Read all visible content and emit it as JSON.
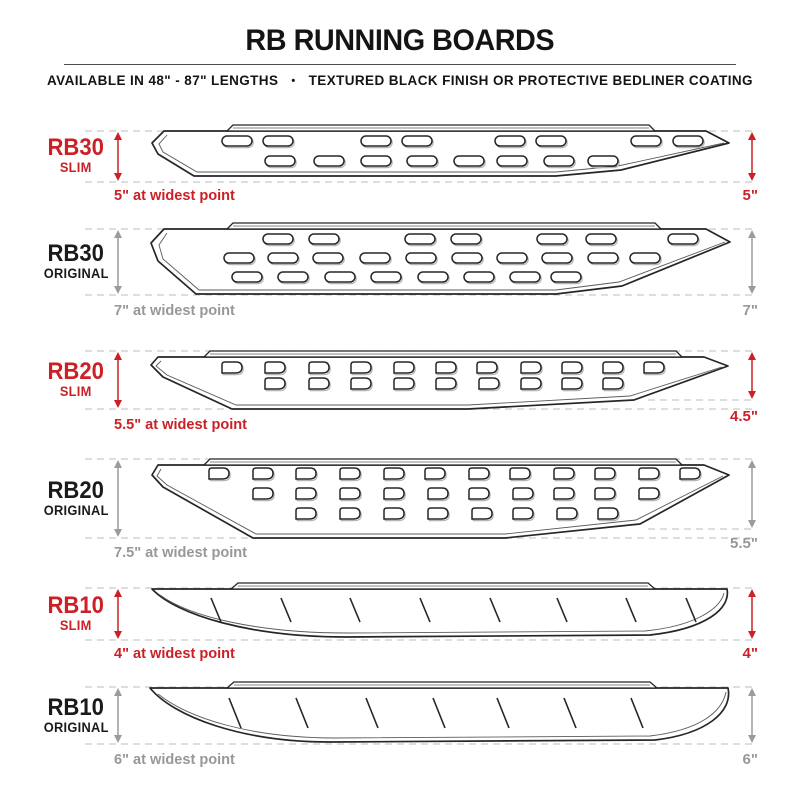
{
  "header": {
    "title": "RB RUNNING BOARDS",
    "subtitle_left": "AVAILABLE IN 48\" - 87\" LENGTHS",
    "subtitle_separator": "•",
    "subtitle_right": "TEXTURED BLACK FINISH OR PROTECTIVE BEDLINER COATING"
  },
  "colors": {
    "slim_accent_red": "#cc2027",
    "original_gray": "#97989b",
    "dashed_guide_gray": "#c9cacc",
    "board_outline": "#26262a",
    "text_black": "#1a1a1c"
  },
  "products": [
    {
      "model": "RB30",
      "variant": "SLIM",
      "style": "slim",
      "left_measure": "5\" at widest point",
      "right_measure": "5\""
    },
    {
      "model": "RB30",
      "variant": "ORIGINAL",
      "style": "original",
      "left_measure": "7\" at widest point",
      "right_measure": "7\""
    },
    {
      "model": "RB20",
      "variant": "SLIM",
      "style": "slim",
      "left_measure": "5.5\" at widest point",
      "right_measure": "4.5\""
    },
    {
      "model": "RB20",
      "variant": "ORIGINAL",
      "style": "original",
      "left_measure": "7.5\" at widest point",
      "right_measure": "5.5\""
    },
    {
      "model": "RB10",
      "variant": "SLIM",
      "style": "slim",
      "left_measure": "4\" at widest point",
      "right_measure": "4\""
    },
    {
      "model": "RB10",
      "variant": "ORIGINAL",
      "style": "original",
      "left_measure": "6\" at widest point",
      "right_measure": "6\""
    }
  ]
}
